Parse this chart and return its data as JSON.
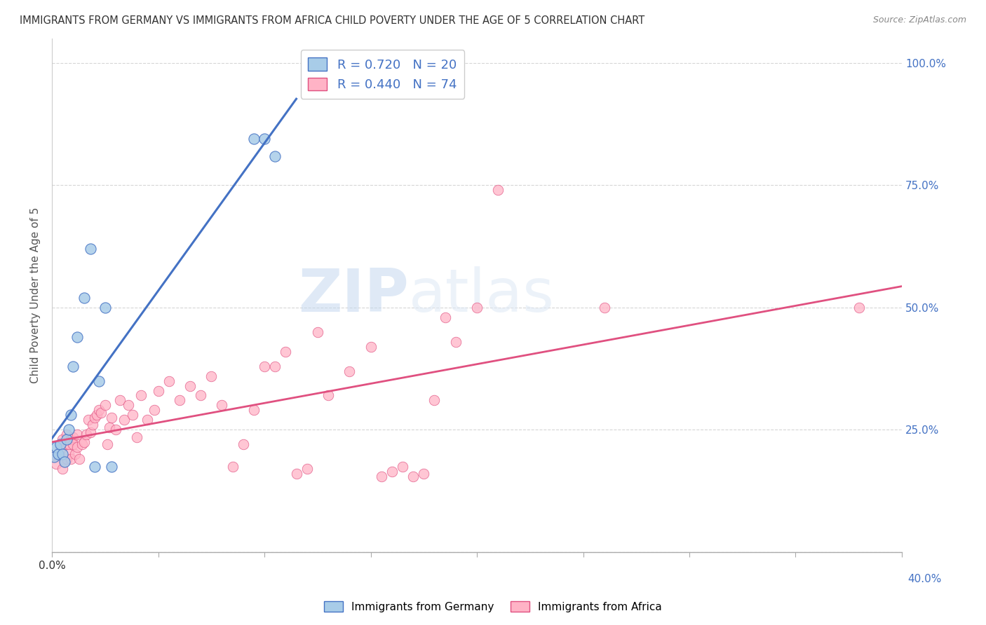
{
  "title": "IMMIGRANTS FROM GERMANY VS IMMIGRANTS FROM AFRICA CHILD POVERTY UNDER THE AGE OF 5 CORRELATION CHART",
  "source": "Source: ZipAtlas.com",
  "ylabel": "Child Poverty Under the Age of 5",
  "ylim": [
    0.0,
    1.05
  ],
  "xlim": [
    0.0,
    0.4
  ],
  "yticks": [
    0.0,
    0.25,
    0.5,
    0.75,
    1.0
  ],
  "ytick_labels": [
    "",
    "25.0%",
    "50.0%",
    "75.0%",
    "100.0%"
  ],
  "xticks": [
    0.0,
    0.05,
    0.1,
    0.15,
    0.2,
    0.25,
    0.3,
    0.35,
    0.4
  ],
  "legend_r_germany": "R = 0.720",
  "legend_n_germany": "N = 20",
  "legend_r_africa": "R = 0.440",
  "legend_n_africa": "N = 74",
  "color_germany": "#a8cce8",
  "color_germany_line": "#4472c4",
  "color_germany_edge": "#4472c4",
  "color_africa": "#ffb3c6",
  "color_africa_line": "#e05080",
  "color_africa_edge": "#e05080",
  "color_right_axis": "#4472c4",
  "watermark_zip": "ZIP",
  "watermark_atlas": "atlas",
  "germany_x": [
    0.001,
    0.002,
    0.003,
    0.004,
    0.005,
    0.006,
    0.007,
    0.008,
    0.009,
    0.01,
    0.012,
    0.015,
    0.018,
    0.02,
    0.022,
    0.025,
    0.028,
    0.095,
    0.1,
    0.105
  ],
  "germany_y": [
    0.195,
    0.215,
    0.2,
    0.22,
    0.2,
    0.185,
    0.23,
    0.25,
    0.28,
    0.38,
    0.44,
    0.52,
    0.62,
    0.175,
    0.35,
    0.5,
    0.175,
    0.845,
    0.845,
    0.81
  ],
  "africa_x": [
    0.001,
    0.002,
    0.003,
    0.004,
    0.005,
    0.005,
    0.006,
    0.006,
    0.007,
    0.007,
    0.008,
    0.008,
    0.009,
    0.009,
    0.01,
    0.01,
    0.011,
    0.012,
    0.012,
    0.013,
    0.014,
    0.015,
    0.016,
    0.017,
    0.018,
    0.019,
    0.02,
    0.021,
    0.022,
    0.023,
    0.025,
    0.026,
    0.027,
    0.028,
    0.03,
    0.032,
    0.034,
    0.036,
    0.038,
    0.04,
    0.042,
    0.045,
    0.048,
    0.05,
    0.055,
    0.06,
    0.065,
    0.07,
    0.075,
    0.08,
    0.085,
    0.09,
    0.095,
    0.1,
    0.105,
    0.11,
    0.115,
    0.12,
    0.125,
    0.13,
    0.14,
    0.15,
    0.155,
    0.16,
    0.165,
    0.17,
    0.175,
    0.18,
    0.185,
    0.19,
    0.2,
    0.21,
    0.26,
    0.38
  ],
  "africa_y": [
    0.195,
    0.18,
    0.2,
    0.21,
    0.17,
    0.23,
    0.185,
    0.22,
    0.19,
    0.24,
    0.22,
    0.2,
    0.23,
    0.19,
    0.235,
    0.22,
    0.2,
    0.215,
    0.24,
    0.19,
    0.22,
    0.225,
    0.24,
    0.27,
    0.245,
    0.26,
    0.275,
    0.28,
    0.29,
    0.285,
    0.3,
    0.22,
    0.255,
    0.275,
    0.25,
    0.31,
    0.27,
    0.3,
    0.28,
    0.235,
    0.32,
    0.27,
    0.29,
    0.33,
    0.35,
    0.31,
    0.34,
    0.32,
    0.36,
    0.3,
    0.175,
    0.22,
    0.29,
    0.38,
    0.38,
    0.41,
    0.16,
    0.17,
    0.45,
    0.32,
    0.37,
    0.42,
    0.155,
    0.165,
    0.175,
    0.155,
    0.16,
    0.31,
    0.48,
    0.43,
    0.5,
    0.74,
    0.5,
    0.5
  ]
}
